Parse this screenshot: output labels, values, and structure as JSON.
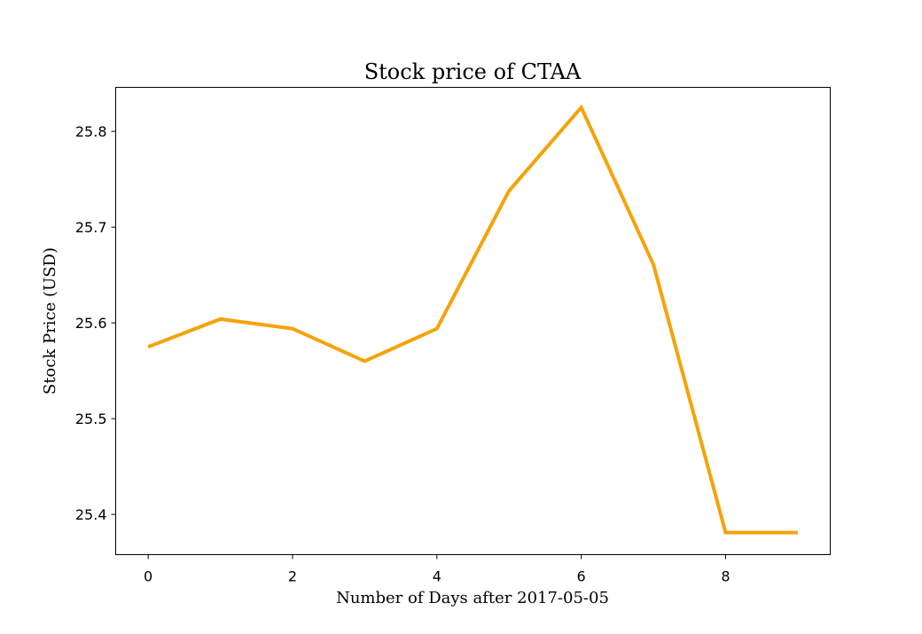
{
  "chart_data": {
    "type": "line",
    "title": "Stock price of CTAA",
    "xlabel": "Number of Days after 2017-05-05",
    "ylabel": "Stock Price (USD)",
    "x": [
      0,
      1,
      2,
      3,
      4,
      5,
      6,
      7,
      8,
      9
    ],
    "series": [
      {
        "values": [
          25.575,
          25.604,
          25.594,
          25.56,
          25.594,
          25.738,
          25.825,
          25.661,
          25.381,
          25.381
        ],
        "color": "#f5a30a"
      }
    ],
    "xlim": [
      -0.45,
      9.45
    ],
    "ylim": [
      25.358,
      25.846
    ],
    "xticks": [
      0,
      2,
      4,
      6,
      8
    ],
    "yticks": [
      25.4,
      25.5,
      25.6,
      25.7,
      25.8
    ],
    "xtick_labels": [
      "0",
      "2",
      "4",
      "6",
      "8"
    ],
    "ytick_labels": [
      "25.4",
      "25.5",
      "25.6",
      "25.7",
      "25.8"
    ],
    "grid": false,
    "legend": "none"
  }
}
